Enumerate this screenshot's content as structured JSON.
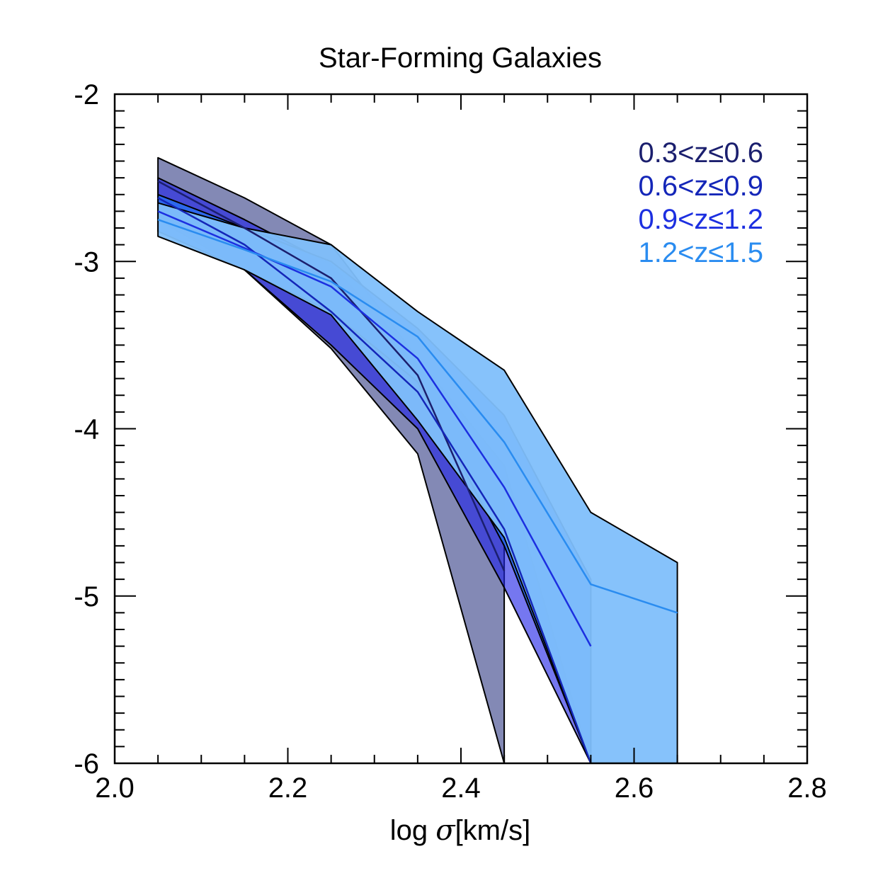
{
  "chart_data": {
    "type": "area",
    "title": "Star-Forming Galaxies",
    "xlabel_prefix": "log ",
    "xlabel_symbol": "σ",
    "xlabel_suffix": "[km/s]",
    "ylabel": "",
    "xlim": [
      2.0,
      2.8
    ],
    "ylim": [
      -6,
      -2
    ],
    "xticks": [
      2.0,
      2.2,
      2.4,
      2.6,
      2.8
    ],
    "xtick_labels": [
      "2.0",
      "2.2",
      "2.4",
      "2.6",
      "2.8"
    ],
    "yticks": [
      -2,
      -3,
      -4,
      -5,
      -6
    ],
    "ytick_labels": [
      "-2",
      "-3",
      "-4",
      "-5",
      "-6"
    ],
    "grid": false,
    "legend_position": "top-right",
    "series": [
      {
        "name": "0.3<z≤0.6",
        "color": "#1b1f6e",
        "fill": "#1e2878",
        "fill_opacity": 0.55,
        "x": [
          2.05,
          2.15,
          2.25,
          2.35,
          2.45
        ],
        "upper": [
          -2.38,
          -2.62,
          -2.9,
          -3.58,
          -4.42
        ],
        "lower": [
          -2.72,
          -3.05,
          -3.52,
          -4.15,
          -6.0
        ],
        "median": [
          -2.52,
          -2.8,
          -3.1,
          -3.68,
          -4.85
        ]
      },
      {
        "name": "0.6<z≤0.9",
        "color": "#1426b8",
        "fill": "#2024e6",
        "fill_opacity": 0.62,
        "x": [
          2.05,
          2.15,
          2.25,
          2.35,
          2.45,
          2.55
        ],
        "upper": [
          -2.5,
          -2.75,
          -3.02,
          -3.58,
          -4.22,
          -6.0
        ],
        "lower": [
          -2.75,
          -3.05,
          -3.5,
          -4.0,
          -4.95,
          -6.0
        ],
        "median": [
          -2.62,
          -2.9,
          -3.3,
          -3.78,
          -4.6,
          -6.0
        ]
      },
      {
        "name": "0.9<z≤1.2",
        "color": "#1c2fe0",
        "fill": "#2a6cf0",
        "fill_opacity": 0.88,
        "x": [
          2.05,
          2.15,
          2.25,
          2.35,
          2.45,
          2.55
        ],
        "upper": [
          -2.6,
          -2.8,
          -3.0,
          -3.4,
          -3.92,
          -4.9
        ],
        "lower": [
          -2.82,
          -3.05,
          -3.3,
          -3.72,
          -4.7,
          -6.0
        ],
        "median": [
          -2.7,
          -2.92,
          -3.15,
          -3.58,
          -4.35,
          -5.3
        ]
      },
      {
        "name": "1.2<z≤1.5",
        "color": "#2a8cf0",
        "fill": "#7fbffb",
        "fill_opacity": 0.95,
        "x": [
          2.05,
          2.15,
          2.25,
          2.35,
          2.45,
          2.55,
          2.65
        ],
        "upper": [
          -2.65,
          -2.8,
          -2.9,
          -3.3,
          -3.65,
          -4.5,
          -4.8
        ],
        "lower": [
          -2.85,
          -3.05,
          -3.32,
          -3.95,
          -4.65,
          -6.0,
          -6.0
        ],
        "median": [
          -2.75,
          -2.93,
          -3.12,
          -3.45,
          -4.08,
          -4.93,
          -5.1
        ]
      }
    ]
  }
}
